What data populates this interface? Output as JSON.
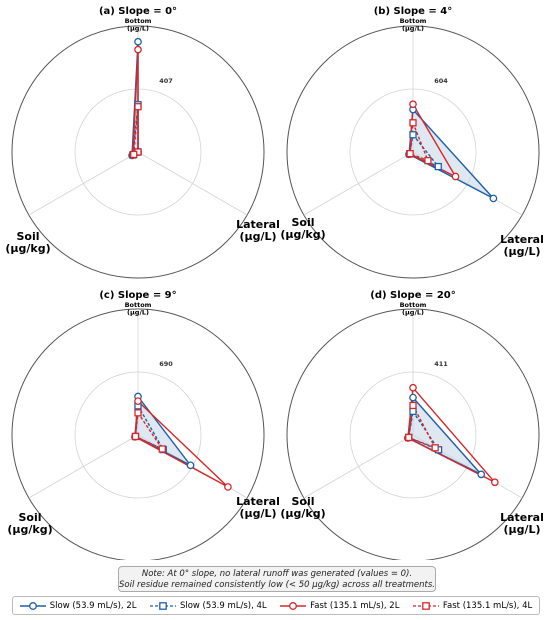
{
  "chart_data": [
    {
      "type": "radar",
      "title": "(a) Slope = 0°",
      "axes": [
        "Bottom\n(μg/L)",
        "Lateral\n(μg/L)",
        "Soil\n(μg/kg)"
      ],
      "rmax_label": "407",
      "rmax": 640,
      "series": [
        {
          "name": "Slow (53.9 mL/s), 2L",
          "values": [
            560,
            0,
            35
          ]
        },
        {
          "name": "Slow (53.9 mL/s), 4L",
          "values": [
            240,
            0,
            30
          ]
        },
        {
          "name": "Fast (135.1 mL/s), 2L",
          "values": [
            520,
            0,
            30
          ]
        },
        {
          "name": "Fast (135.1 mL/s), 4L",
          "values": [
            230,
            0,
            25
          ]
        }
      ]
    },
    {
      "type": "radar",
      "title": "(b) Slope = 4°",
      "axes": [
        "Bottom\n(μg/L)",
        "Lateral\n(μg/L)",
        "Soil\n(μg/kg)"
      ],
      "rmax_label": "604",
      "rmax": 950,
      "series": [
        {
          "name": "Slow (53.9 mL/s), 2L",
          "values": [
            320,
            700,
            35
          ]
        },
        {
          "name": "Slow (53.9 mL/s), 4L",
          "values": [
            130,
            220,
            30
          ]
        },
        {
          "name": "Fast (135.1 mL/s), 2L",
          "values": [
            360,
            370,
            30
          ]
        },
        {
          "name": "Fast (135.1 mL/s), 4L",
          "values": [
            220,
            130,
            25
          ]
        }
      ]
    },
    {
      "type": "radar",
      "title": "(c) Slope = 9°",
      "axes": [
        "Bottom\n(μg/L)",
        "Lateral\n(μg/L)",
        "Soil\n(μg/kg)"
      ],
      "rmax_label": "690",
      "rmax": 1080,
      "series": [
        {
          "name": "Slow (53.9 mL/s), 2L",
          "values": [
            330,
            520,
            30
          ]
        },
        {
          "name": "Slow (53.9 mL/s), 4L",
          "values": [
            250,
            250,
            25
          ]
        },
        {
          "name": "Fast (135.1 mL/s), 2L",
          "values": [
            290,
            890,
            30
          ]
        },
        {
          "name": "Fast (135.1 mL/s), 4L",
          "values": [
            190,
            240,
            25
          ]
        }
      ]
    },
    {
      "type": "radar",
      "title": "(d) Slope = 20°",
      "axes": [
        "Bottom\n(μg/L)",
        "Lateral\n(μg/L)",
        "Soil\n(μg/kg)"
      ],
      "rmax_label": "411",
      "rmax": 640,
      "series": [
        {
          "name": "Slow (53.9 mL/s), 2L",
          "values": [
            190,
            400,
            30
          ]
        },
        {
          "name": "Slow (53.9 mL/s), 4L",
          "values": [
            120,
            150,
            25
          ]
        },
        {
          "name": "Fast (135.1 mL/s), 2L",
          "values": [
            240,
            480,
            30
          ]
        },
        {
          "name": "Fast (135.1 mL/s), 4L",
          "values": [
            150,
            130,
            25
          ]
        }
      ]
    }
  ],
  "styles": {
    "series_colors": [
      "#1f5fa8",
      "#1f5fa8",
      "#d62728",
      "#d62728"
    ],
    "series_markers": [
      "circle",
      "square",
      "circle",
      "square"
    ],
    "series_dash": [
      "solid",
      "dashed",
      "solid",
      "dashed"
    ],
    "fill_color": "#c5d3e6"
  },
  "note": {
    "line1": "Note: At 0° slope, no lateral runoff was generated (values = 0).",
    "line2": "Soil residue remained consistently low (< 50 μg/kg) across all treatments."
  },
  "legend": [
    {
      "label": "Slow (53.9 mL/s), 2L"
    },
    {
      "label": "Slow (53.9 mL/s), 4L"
    },
    {
      "label": "Fast (135.1 mL/s), 2L"
    },
    {
      "label": "Fast (135.1 mL/s), 4L"
    }
  ]
}
